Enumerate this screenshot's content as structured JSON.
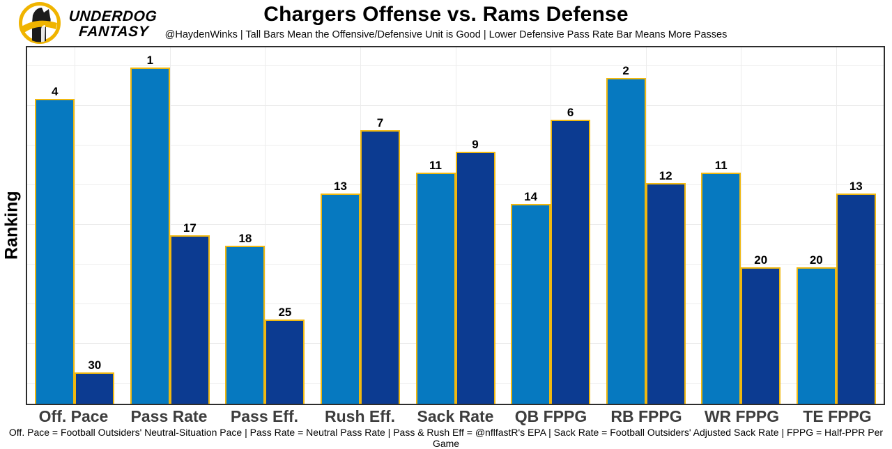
{
  "brand": {
    "line1": "UNDERDOG",
    "line2": "FANTASY",
    "gold": "#f0b400"
  },
  "header": {
    "title": "Chargers Offense vs. Rams Defense",
    "subtitle": "@HaydenWinks | Tall Bars Mean the Offensive/Defensive Unit is Good | Lower Defensive Pass Rate Bar Means More Passes"
  },
  "chart_data": {
    "type": "bar",
    "title": "Chargers Offense vs. Rams Defense",
    "ylabel": "Ranking",
    "categories": [
      "Off. Pace",
      "Pass Rate",
      "Pass Eff.",
      "Rush Eff.",
      "Sack Rate",
      "QB FPPG",
      "RB FPPG",
      "WR FPPG",
      "TE FPPG"
    ],
    "series": [
      {
        "name": "Chargers Offense",
        "color": "#0679c0",
        "values": [
          4,
          1,
          18,
          13,
          11,
          14,
          2,
          11,
          20
        ]
      },
      {
        "name": "Rams Defense",
        "color": "#0c3b91",
        "values": [
          30,
          17,
          25,
          7,
          9,
          6,
          12,
          20,
          13
        ]
      }
    ],
    "value_semantics": "Ranking where 1 is best; taller bar means better ranking",
    "ylim": [
      33,
      0
    ],
    "grid": true,
    "legend": "none",
    "bar_edge_color": "#f0b810",
    "axis_label_color": "#3d3d3d",
    "plot_border_color": "#2d2d2d",
    "grid_color": "#ececec"
  },
  "footer": {
    "note": "Off. Pace = Football Outsiders' Neutral-Situation Pace | Pass Rate = Neutral Pass Rate | Pass & Rush Eff = @nflfastR's EPA | Sack Rate = Football Outsiders' Adjusted Sack Rate | FPPG = Half-PPR Per Game"
  }
}
